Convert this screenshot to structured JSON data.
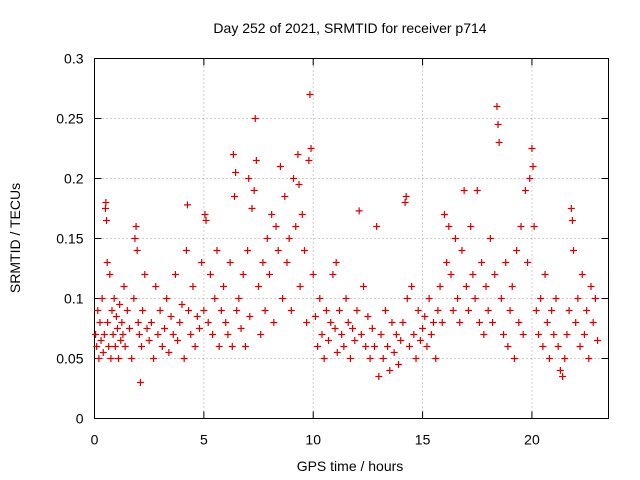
{
  "chart_data": {
    "type": "scatter",
    "title": "Day 252 of 2021, SRMTID for receiver p714",
    "xlabel": "GPS time / hours",
    "ylabel": "SRMTID / TECUs",
    "xlim": [
      0,
      23.5
    ],
    "ylim": [
      0,
      0.3
    ],
    "x_ticks": [
      "0",
      "5",
      "10",
      "15",
      "20"
    ],
    "y_ticks": [
      "0",
      "0.05",
      "0.1",
      "0.15",
      "0.2",
      "0.25",
      "0.3"
    ],
    "grid": true,
    "marker": "plus",
    "color": "#dd0000",
    "series": [
      {
        "name": "SRMTID",
        "points": [
          [
            0.05,
            0.07
          ],
          [
            0.1,
            0.06
          ],
          [
            0.15,
            0.09
          ],
          [
            0.2,
            0.05
          ],
          [
            0.25,
            0.08
          ],
          [
            0.3,
            0.065
          ],
          [
            0.35,
            0.1
          ],
          [
            0.4,
            0.055
          ],
          [
            0.45,
            0.07
          ],
          [
            0.5,
            0.175
          ],
          [
            0.52,
            0.18
          ],
          [
            0.55,
            0.165
          ],
          [
            0.58,
            0.13
          ],
          [
            0.6,
            0.08
          ],
          [
            0.65,
            0.06
          ],
          [
            0.7,
            0.12
          ],
          [
            0.75,
            0.05
          ],
          [
            0.8,
            0.09
          ],
          [
            0.85,
            0.07
          ],
          [
            0.9,
            0.1
          ],
          [
            0.95,
            0.06
          ],
          [
            1.0,
            0.085
          ],
          [
            1.05,
            0.075
          ],
          [
            1.1,
            0.05
          ],
          [
            1.15,
            0.095
          ],
          [
            1.2,
            0.065
          ],
          [
            1.25,
            0.08
          ],
          [
            1.3,
            0.07
          ],
          [
            1.35,
            0.11
          ],
          [
            1.4,
            0.06
          ],
          [
            1.5,
            0.09
          ],
          [
            1.6,
            0.075
          ],
          [
            1.7,
            0.05
          ],
          [
            1.8,
            0.1
          ],
          [
            1.85,
            0.15
          ],
          [
            1.9,
            0.16
          ],
          [
            1.95,
            0.14
          ],
          [
            2.0,
            0.08
          ],
          [
            2.05,
            0.07
          ],
          [
            2.1,
            0.03
          ],
          [
            2.15,
            0.06
          ],
          [
            2.2,
            0.09
          ],
          [
            2.3,
            0.12
          ],
          [
            2.4,
            0.075
          ],
          [
            2.5,
            0.065
          ],
          [
            2.6,
            0.08
          ],
          [
            2.7,
            0.05
          ],
          [
            2.8,
            0.11
          ],
          [
            2.9,
            0.07
          ],
          [
            3.0,
            0.09
          ],
          [
            3.1,
            0.06
          ],
          [
            3.2,
            0.075
          ],
          [
            3.3,
            0.1
          ],
          [
            3.4,
            0.055
          ],
          [
            3.5,
            0.085
          ],
          [
            3.6,
            0.07
          ],
          [
            3.7,
            0.12
          ],
          [
            3.8,
            0.065
          ],
          [
            3.9,
            0.08
          ],
          [
            4.0,
            0.095
          ],
          [
            4.1,
            0.05
          ],
          [
            4.2,
            0.14
          ],
          [
            4.25,
            0.178
          ],
          [
            4.3,
            0.09
          ],
          [
            4.4,
            0.07
          ],
          [
            4.5,
            0.11
          ],
          [
            4.6,
            0.06
          ],
          [
            4.7,
            0.085
          ],
          [
            4.8,
            0.075
          ],
          [
            4.9,
            0.13
          ],
          [
            5.0,
            0.09
          ],
          [
            5.05,
            0.17
          ],
          [
            5.1,
            0.165
          ],
          [
            5.2,
            0.08
          ],
          [
            5.3,
            0.12
          ],
          [
            5.4,
            0.07
          ],
          [
            5.5,
            0.1
          ],
          [
            5.6,
            0.14
          ],
          [
            5.7,
            0.06
          ],
          [
            5.8,
            0.09
          ],
          [
            5.9,
            0.11
          ],
          [
            6.0,
            0.08
          ],
          [
            6.1,
            0.07
          ],
          [
            6.2,
            0.13
          ],
          [
            6.3,
            0.06
          ],
          [
            6.35,
            0.22
          ],
          [
            6.4,
            0.185
          ],
          [
            6.45,
            0.205
          ],
          [
            6.5,
            0.09
          ],
          [
            6.6,
            0.1
          ],
          [
            6.7,
            0.075
          ],
          [
            6.8,
            0.12
          ],
          [
            6.9,
            0.06
          ],
          [
            7.0,
            0.14
          ],
          [
            7.05,
            0.2
          ],
          [
            7.1,
            0.085
          ],
          [
            7.2,
            0.175
          ],
          [
            7.3,
            0.19
          ],
          [
            7.35,
            0.25
          ],
          [
            7.4,
            0.215
          ],
          [
            7.5,
            0.11
          ],
          [
            7.6,
            0.07
          ],
          [
            7.7,
            0.13
          ],
          [
            7.8,
            0.09
          ],
          [
            7.9,
            0.15
          ],
          [
            8.0,
            0.12
          ],
          [
            8.1,
            0.17
          ],
          [
            8.2,
            0.08
          ],
          [
            8.3,
            0.16
          ],
          [
            8.4,
            0.14
          ],
          [
            8.5,
            0.21
          ],
          [
            8.6,
            0.1
          ],
          [
            8.7,
            0.185
          ],
          [
            8.8,
            0.13
          ],
          [
            8.9,
            0.15
          ],
          [
            9.0,
            0.09
          ],
          [
            9.1,
            0.2
          ],
          [
            9.2,
            0.16
          ],
          [
            9.3,
            0.22
          ],
          [
            9.35,
            0.195
          ],
          [
            9.4,
            0.11
          ],
          [
            9.5,
            0.17
          ],
          [
            9.6,
            0.14
          ],
          [
            9.7,
            0.08
          ],
          [
            9.8,
            0.215
          ],
          [
            9.85,
            0.27
          ],
          [
            9.9,
            0.225
          ],
          [
            10.0,
            0.12
          ],
          [
            10.1,
            0.085
          ],
          [
            10.2,
            0.06
          ],
          [
            10.3,
            0.1
          ],
          [
            10.4,
            0.07
          ],
          [
            10.5,
            0.05
          ],
          [
            10.6,
            0.09
          ],
          [
            10.7,
            0.065
          ],
          [
            10.8,
            0.08
          ],
          [
            10.9,
            0.12
          ],
          [
            11.0,
            0.075
          ],
          [
            11.05,
            0.13
          ],
          [
            11.1,
            0.055
          ],
          [
            11.2,
            0.09
          ],
          [
            11.3,
            0.07
          ],
          [
            11.4,
            0.06
          ],
          [
            11.5,
            0.1
          ],
          [
            11.6,
            0.08
          ],
          [
            11.7,
            0.05
          ],
          [
            11.8,
            0.075
          ],
          [
            11.9,
            0.065
          ],
          [
            12.0,
            0.09
          ],
          [
            12.1,
            0.173
          ],
          [
            12.2,
            0.07
          ],
          [
            12.3,
            0.11
          ],
          [
            12.4,
            0.06
          ],
          [
            12.5,
            0.085
          ],
          [
            12.6,
            0.05
          ],
          [
            12.7,
            0.075
          ],
          [
            12.8,
            0.06
          ],
          [
            12.9,
            0.16
          ],
          [
            13.0,
            0.035
          ],
          [
            13.1,
            0.07
          ],
          [
            13.2,
            0.05
          ],
          [
            13.3,
            0.09
          ],
          [
            13.4,
            0.06
          ],
          [
            13.5,
            0.04
          ],
          [
            13.6,
            0.08
          ],
          [
            13.7,
            0.055
          ],
          [
            13.8,
            0.07
          ],
          [
            13.9,
            0.045
          ],
          [
            14.0,
            0.065
          ],
          [
            14.1,
            0.08
          ],
          [
            14.2,
            0.18
          ],
          [
            14.25,
            0.185
          ],
          [
            14.3,
            0.1
          ],
          [
            14.4,
            0.06
          ],
          [
            14.5,
            0.11
          ],
          [
            14.6,
            0.07
          ],
          [
            14.7,
            0.05
          ],
          [
            14.8,
            0.09
          ],
          [
            14.9,
            0.065
          ],
          [
            15.0,
            0.075
          ],
          [
            15.1,
            0.085
          ],
          [
            15.2,
            0.06
          ],
          [
            15.3,
            0.1
          ],
          [
            15.4,
            0.07
          ],
          [
            15.5,
            0.08
          ],
          [
            15.6,
            0.05
          ],
          [
            15.7,
            0.09
          ],
          [
            15.8,
            0.11
          ],
          [
            15.9,
            0.08
          ],
          [
            16.0,
            0.17
          ],
          [
            16.1,
            0.13
          ],
          [
            16.2,
            0.16
          ],
          [
            16.3,
            0.12
          ],
          [
            16.4,
            0.09
          ],
          [
            16.5,
            0.15
          ],
          [
            16.6,
            0.1
          ],
          [
            16.7,
            0.08
          ],
          [
            16.8,
            0.14
          ],
          [
            16.9,
            0.19
          ],
          [
            17.0,
            0.11
          ],
          [
            17.1,
            0.09
          ],
          [
            17.2,
            0.16
          ],
          [
            17.3,
            0.12
          ],
          [
            17.4,
            0.1
          ],
          [
            17.5,
            0.19
          ],
          [
            17.6,
            0.08
          ],
          [
            17.7,
            0.13
          ],
          [
            17.8,
            0.07
          ],
          [
            17.9,
            0.11
          ],
          [
            18.0,
            0.09
          ],
          [
            18.1,
            0.15
          ],
          [
            18.2,
            0.08
          ],
          [
            18.3,
            0.12
          ],
          [
            18.4,
            0.26
          ],
          [
            18.45,
            0.245
          ],
          [
            18.5,
            0.23
          ],
          [
            18.6,
            0.1
          ],
          [
            18.7,
            0.07
          ],
          [
            18.8,
            0.13
          ],
          [
            18.9,
            0.06
          ],
          [
            19.0,
            0.09
          ],
          [
            19.1,
            0.11
          ],
          [
            19.2,
            0.05
          ],
          [
            19.3,
            0.14
          ],
          [
            19.4,
            0.08
          ],
          [
            19.5,
            0.16
          ],
          [
            19.6,
            0.07
          ],
          [
            19.7,
            0.19
          ],
          [
            19.8,
            0.13
          ],
          [
            19.9,
            0.2
          ],
          [
            20.0,
            0.225
          ],
          [
            20.05,
            0.21
          ],
          [
            20.1,
            0.16
          ],
          [
            20.2,
            0.09
          ],
          [
            20.3,
            0.07
          ],
          [
            20.4,
            0.1
          ],
          [
            20.5,
            0.06
          ],
          [
            20.6,
            0.12
          ],
          [
            20.7,
            0.08
          ],
          [
            20.8,
            0.05
          ],
          [
            20.9,
            0.09
          ],
          [
            21.0,
            0.07
          ],
          [
            21.1,
            0.1
          ],
          [
            21.2,
            0.06
          ],
          [
            21.3,
            0.04
          ],
          [
            21.4,
            0.035
          ],
          [
            21.5,
            0.05
          ],
          [
            21.6,
            0.07
          ],
          [
            21.7,
            0.09
          ],
          [
            21.8,
            0.175
          ],
          [
            21.85,
            0.165
          ],
          [
            21.9,
            0.14
          ],
          [
            22.0,
            0.08
          ],
          [
            22.1,
            0.1
          ],
          [
            22.2,
            0.06
          ],
          [
            22.3,
            0.12
          ],
          [
            22.4,
            0.07
          ],
          [
            22.5,
            0.09
          ],
          [
            22.6,
            0.05
          ],
          [
            22.7,
            0.11
          ],
          [
            22.8,
            0.08
          ],
          [
            22.9,
            0.1
          ],
          [
            23.0,
            0.065
          ]
        ]
      }
    ]
  }
}
